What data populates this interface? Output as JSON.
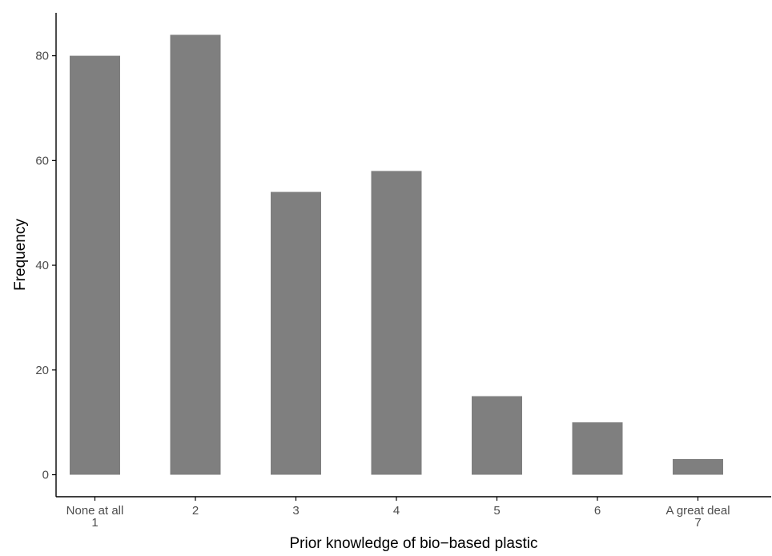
{
  "chart_data": {
    "type": "bar",
    "title": "",
    "xlabel": "Prior knowledge of bio−based plastic",
    "ylabel": "Frequency",
    "categories": [
      [
        "None at all",
        "1"
      ],
      [
        "2"
      ],
      [
        "3"
      ],
      [
        "4"
      ],
      [
        "5"
      ],
      [
        "6"
      ],
      [
        "A great deal",
        "7"
      ]
    ],
    "values": [
      80,
      84,
      54,
      58,
      15,
      10,
      3
    ],
    "ylim": [
      -4.2,
      88.2
    ],
    "yticks": [
      0,
      20,
      40,
      60,
      80
    ],
    "grid": false,
    "legend": "none",
    "colors": {
      "bar": "#7f7f7f",
      "axis": "#000000",
      "tick_label": "#4d4d4d",
      "background": "#ffffff"
    }
  }
}
